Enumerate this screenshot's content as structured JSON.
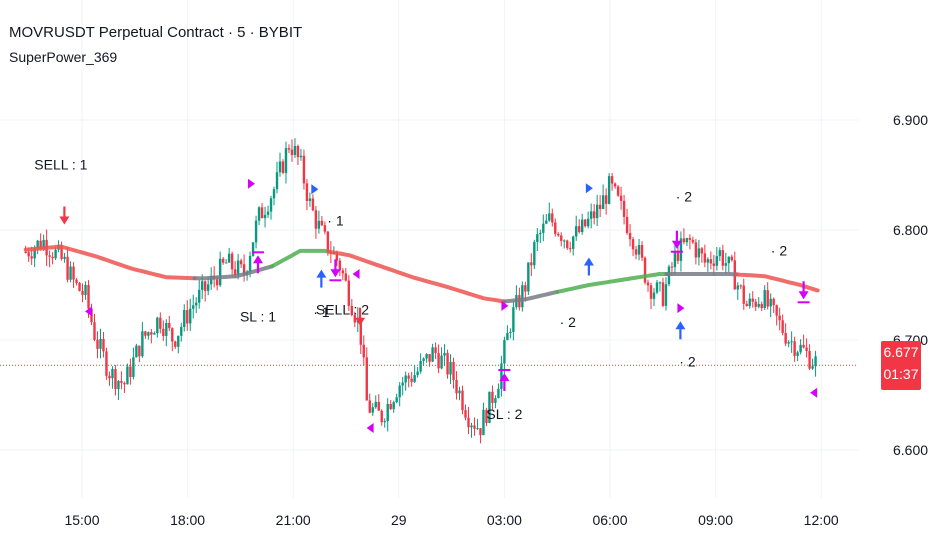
{
  "header": {
    "title": "MOVRUSDT Perpetual Contract · 5 · BYBIT",
    "indicator": "SuperPower_369"
  },
  "price_axis": {
    "current_price": "6.677",
    "countdown": "01:37"
  },
  "colors": {
    "up": "#089981",
    "down": "#f23645",
    "ma_red": "#ef5350",
    "ma_green": "#4caf50",
    "ma_gray": "#787b86",
    "buy_arrow": "#2962ff",
    "sl_arrow": "#d500f9",
    "sell_arrow": "#f23645",
    "price_line": "#f23645"
  },
  "chart_data": {
    "type": "candlestick",
    "title": "MOVRUSDT Perpetual Contract · 5 · BYBIT",
    "indicator": "SuperPower_369",
    "ylim": [
      6.57,
      6.94
    ],
    "y_ticks": [
      "6.900",
      "6.800",
      "6.700",
      "6.600"
    ],
    "x_ticks": [
      "15:00",
      "18:00",
      "21:00",
      "29",
      "03:00",
      "06:00",
      "09:00",
      "12:00"
    ],
    "x_tick_hours": [
      15,
      18,
      21,
      24,
      27,
      30,
      33,
      36
    ],
    "x_range_hours": [
      13.4,
      36.7
    ],
    "current_price": 6.677,
    "close_path": [
      [
        13.4,
        6.78
      ],
      [
        13.9,
        6.79
      ],
      [
        14.5,
        6.77
      ],
      [
        14.8,
        6.75
      ],
      [
        15.1,
        6.74
      ],
      [
        15.4,
        6.7
      ],
      [
        15.8,
        6.67
      ],
      [
        16.2,
        6.66
      ],
      [
        16.7,
        6.7
      ],
      [
        17.2,
        6.72
      ],
      [
        17.6,
        6.7
      ],
      [
        18.1,
        6.73
      ],
      [
        18.6,
        6.75
      ],
      [
        19.1,
        6.77
      ],
      [
        19.6,
        6.76
      ],
      [
        20.0,
        6.81
      ],
      [
        20.5,
        6.84
      ],
      [
        20.9,
        6.88
      ],
      [
        21.2,
        6.86
      ],
      [
        21.5,
        6.82
      ],
      [
        21.9,
        6.79
      ],
      [
        22.3,
        6.77
      ],
      [
        22.6,
        6.74
      ],
      [
        22.9,
        6.71
      ],
      [
        23.1,
        6.64
      ],
      [
        23.5,
        6.63
      ],
      [
        24.0,
        6.66
      ],
      [
        24.5,
        6.67
      ],
      [
        25.0,
        6.69
      ],
      [
        25.5,
        6.67
      ],
      [
        26.0,
        6.63
      ],
      [
        26.3,
        6.62
      ],
      [
        26.8,
        6.66
      ],
      [
        27.2,
        6.72
      ],
      [
        27.6,
        6.75
      ],
      [
        27.9,
        6.79
      ],
      [
        28.3,
        6.81
      ],
      [
        28.8,
        6.79
      ],
      [
        29.2,
        6.8
      ],
      [
        29.7,
        6.82
      ],
      [
        30.0,
        6.84
      ],
      [
        30.3,
        6.82
      ],
      [
        30.7,
        6.79
      ],
      [
        31.1,
        6.75
      ],
      [
        31.5,
        6.74
      ],
      [
        31.9,
        6.78
      ],
      [
        32.3,
        6.79
      ],
      [
        32.7,
        6.77
      ],
      [
        33.1,
        6.78
      ],
      [
        33.5,
        6.76
      ],
      [
        33.9,
        6.73
      ],
      [
        34.3,
        6.74
      ],
      [
        34.7,
        6.72
      ],
      [
        35.1,
        6.7
      ],
      [
        35.5,
        6.69
      ],
      [
        35.8,
        6.68
      ]
    ],
    "series": [
      {
        "type": "line",
        "points": [
          [
            13.4,
            6.782
          ],
          [
            14.4,
            6.785
          ],
          [
            15.4,
            6.776
          ],
          [
            16.4,
            6.765
          ],
          [
            17.4,
            6.757
          ],
          [
            18.4,
            6.756
          ],
          [
            19.4,
            6.758
          ],
          [
            20.4,
            6.767
          ],
          [
            21.2,
            6.781
          ],
          [
            21.9,
            6.781
          ],
          [
            22.6,
            6.777
          ],
          [
            23.4,
            6.768
          ],
          [
            24.4,
            6.757
          ],
          [
            25.4,
            6.748
          ],
          [
            26.4,
            6.738
          ],
          [
            27.0,
            6.735
          ],
          [
            27.6,
            6.737
          ],
          [
            28.4,
            6.743
          ],
          [
            29.4,
            6.75
          ],
          [
            30.4,
            6.755
          ],
          [
            31.4,
            6.76
          ],
          [
            32.4,
            6.76
          ],
          [
            33.4,
            6.76
          ],
          [
            34.4,
            6.758
          ],
          [
            35.4,
            6.75
          ],
          [
            35.9,
            6.745
          ]
        ],
        "segments": [
          {
            "from": 13.4,
            "to": 18.2,
            "color": "red"
          },
          {
            "from": 18.2,
            "to": 20.4,
            "color": "gray"
          },
          {
            "from": 20.4,
            "to": 22.0,
            "color": "green"
          },
          {
            "from": 22.0,
            "to": 27.0,
            "color": "red"
          },
          {
            "from": 27.0,
            "to": 28.5,
            "color": "gray"
          },
          {
            "from": 28.5,
            "to": 31.6,
            "color": "green"
          },
          {
            "from": 31.6,
            "to": 33.6,
            "color": "gray"
          },
          {
            "from": 33.6,
            "to": 35.9,
            "color": "red"
          }
        ]
      }
    ],
    "annotations": [
      {
        "text": "SELL : 1",
        "x": 14.4,
        "y": 6.855
      },
      {
        "text": "SL : 1",
        "x": 20.0,
        "y": 6.717
      },
      {
        "text": "· 1",
        "x": 21.8,
        "y": 6.721
      },
      {
        "text": "SELL : 2",
        "x": 22.4,
        "y": 6.723
      },
      {
        "text": "· 1",
        "x": 22.2,
        "y": 6.804
      },
      {
        "text": "· 2",
        "x": 28.8,
        "y": 6.712
      },
      {
        "text": "SL : 2",
        "x": 27.0,
        "y": 6.628
      },
      {
        "text": "· 2",
        "x": 32.1,
        "y": 6.826
      },
      {
        "text": "· 2",
        "x": 32.2,
        "y": 6.676
      },
      {
        "text": "· 2",
        "x": 34.8,
        "y": 6.777
      }
    ],
    "signals": [
      {
        "kind": "sell",
        "x": 14.5,
        "y": 6.805
      },
      {
        "kind": "sl",
        "x": 20.0,
        "y": 6.777
      },
      {
        "kind": "buy",
        "x": 21.8,
        "y": 6.764
      },
      {
        "kind": "sl-down",
        "x": 22.2,
        "y": 6.757
      },
      {
        "kind": "sell",
        "x": 22.9,
        "y": 6.713
      },
      {
        "kind": "sl",
        "x": 27.0,
        "y": 6.67
      },
      {
        "kind": "buy",
        "x": 29.4,
        "y": 6.775
      },
      {
        "kind": "sl-down",
        "x": 31.9,
        "y": 6.783
      },
      {
        "kind": "buy",
        "x": 32.0,
        "y": 6.717
      },
      {
        "kind": "sl-down",
        "x": 35.5,
        "y": 6.737
      }
    ],
    "markers": [
      {
        "kind": "tri-right",
        "color": "buy",
        "x": 21.6,
        "y": 6.837
      },
      {
        "kind": "tri-right",
        "color": "sl",
        "x": 19.8,
        "y": 6.842
      },
      {
        "kind": "tri-right",
        "color": "sl",
        "x": 27.0,
        "y": 6.731
      },
      {
        "kind": "tri-right",
        "color": "buy",
        "x": 29.4,
        "y": 6.838
      },
      {
        "kind": "tri-left",
        "color": "sl",
        "x": 15.2,
        "y": 6.726
      },
      {
        "kind": "tri-left",
        "color": "sl",
        "x": 22.8,
        "y": 6.76
      },
      {
        "kind": "tri-left",
        "color": "sl",
        "x": 23.2,
        "y": 6.62
      },
      {
        "kind": "tri-left",
        "color": "sl",
        "x": 35.8,
        "y": 6.652
      },
      {
        "kind": "tri-right",
        "color": "sl",
        "x": 32.0,
        "y": 6.729
      }
    ]
  }
}
